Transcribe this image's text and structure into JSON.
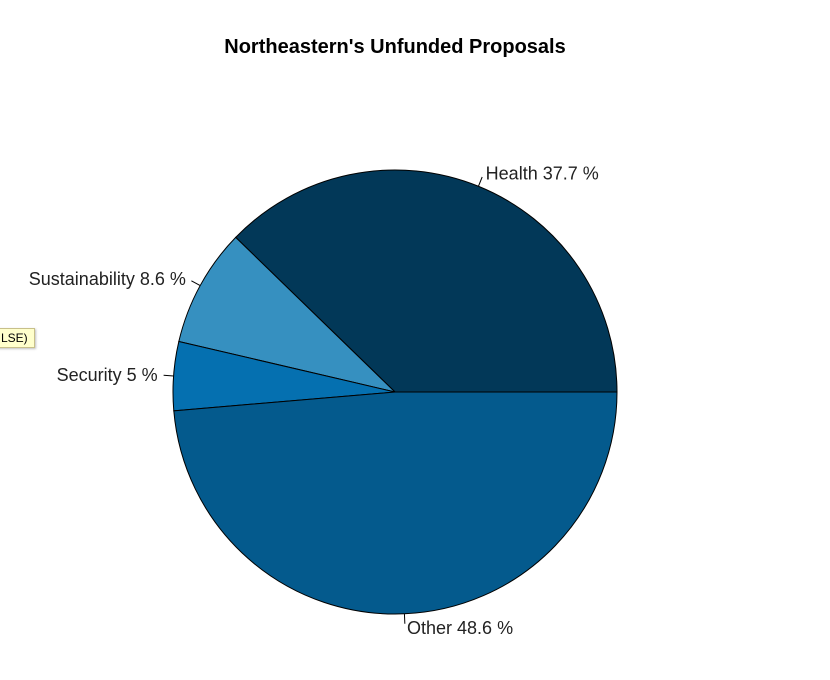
{
  "tooltip": {
    "text": "LSE)"
  },
  "chart_data": {
    "type": "pie",
    "title": "Northeastern's Unfunded Proposals",
    "slices": [
      {
        "label": "Health",
        "percent_label": "37.7 %",
        "value": 37.7,
        "color": "#023858"
      },
      {
        "label": "Sustainability",
        "percent_label": "8.6 %",
        "value": 8.6,
        "color": "#3690c0"
      },
      {
        "label": "Security",
        "percent_label": "5 %",
        "value": 5.0,
        "color": "#0570b0"
      },
      {
        "label": "Other",
        "percent_label": "48.6 %",
        "value": 48.6,
        "color": "#045a8d"
      }
    ],
    "start_angle_deg": 0,
    "direction": "clockwise",
    "legend": "none"
  }
}
